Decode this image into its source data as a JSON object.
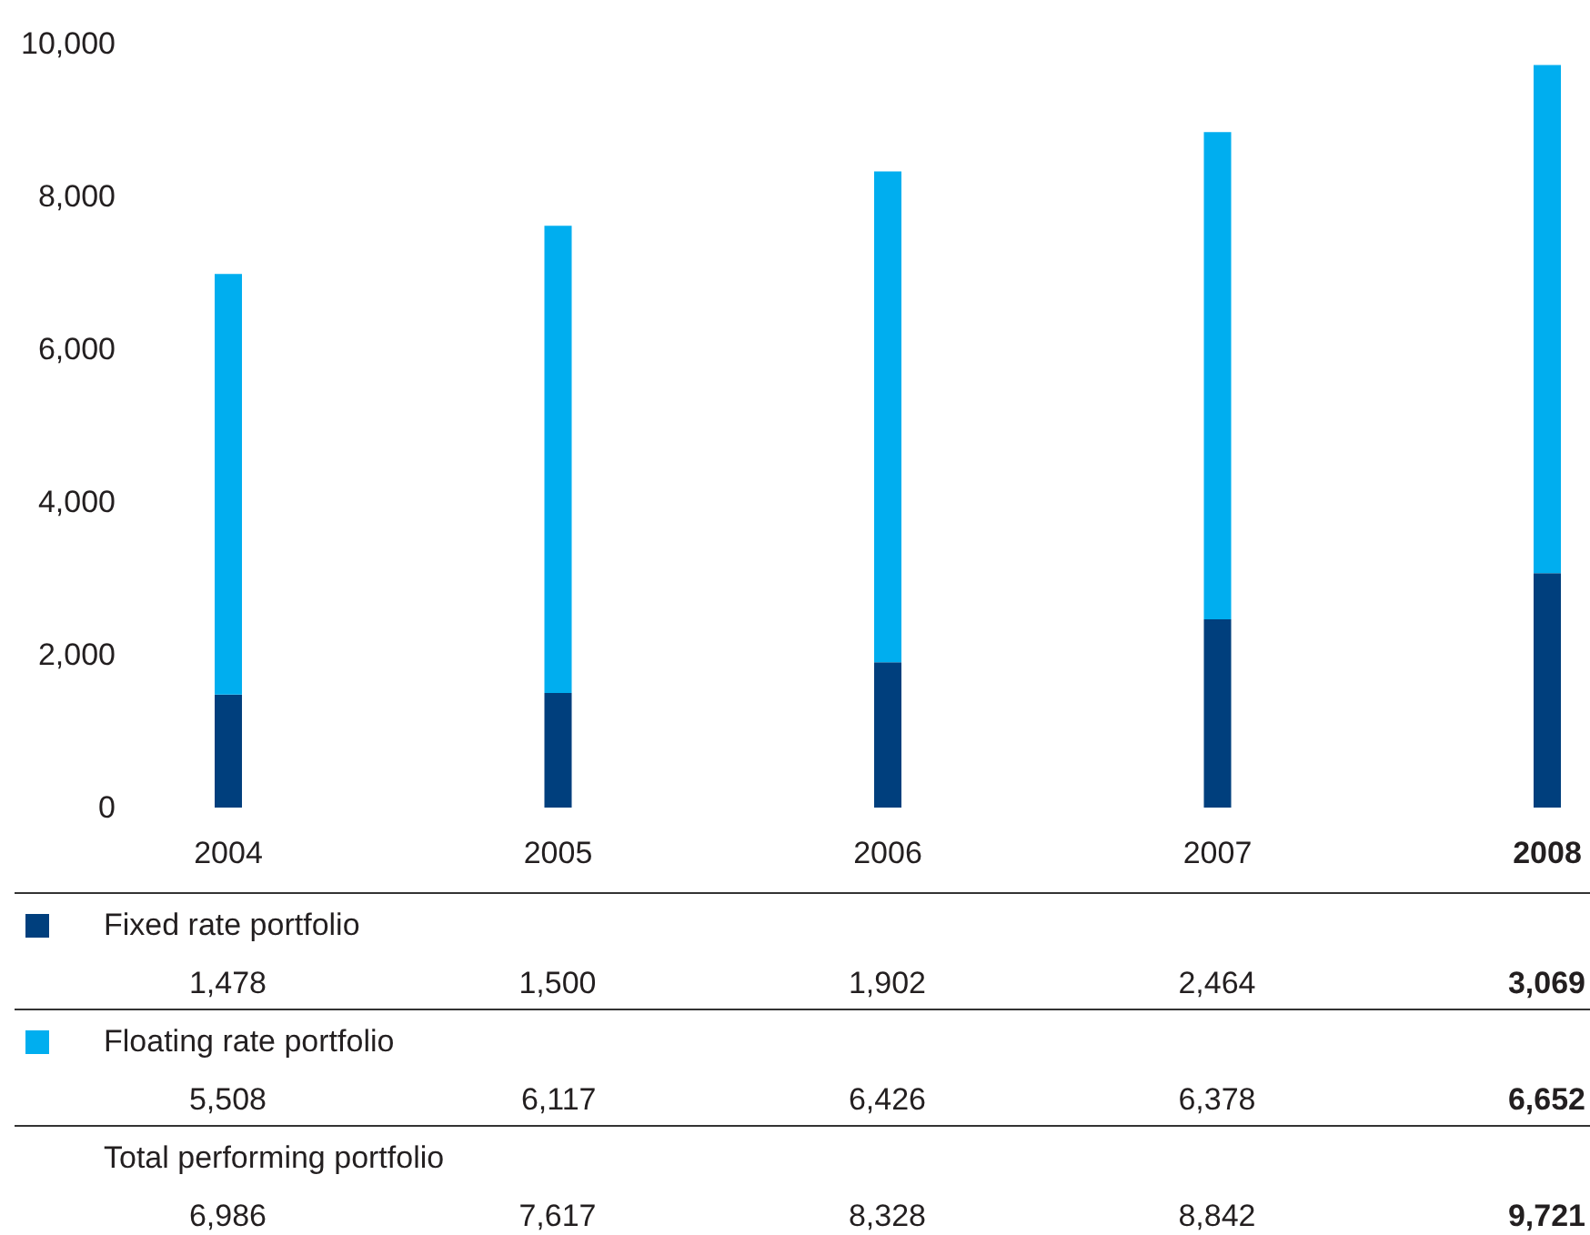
{
  "chart_data": {
    "type": "bar",
    "stacked": true,
    "categories": [
      "2004",
      "2005",
      "2006",
      "2007",
      "2008"
    ],
    "series": [
      {
        "name": "Fixed rate portfolio",
        "color": "#003f7d",
        "values": [
          1478,
          1500,
          1902,
          2464,
          3069
        ],
        "value_labels": [
          "1,478",
          "1,500",
          "1,902",
          "2,464",
          "3,069"
        ]
      },
      {
        "name": "Floating rate portfolio",
        "color": "#00aeef",
        "values": [
          5508,
          6117,
          6426,
          6378,
          6652
        ],
        "value_labels": [
          "5,508",
          "6,117",
          "6,426",
          "6,378",
          "6,652"
        ]
      }
    ],
    "annotations": [
      "Total performing portfolio",
      "6,986",
      "7,617",
      "8,328",
      "8,842",
      "9,721"
    ],
    "ylim": [
      0,
      10000
    ],
    "yticks": [
      0,
      {
        "value": 2000,
        "label": "2,000"
      },
      {
        "value": 4000,
        "label": "4,000"
      },
      {
        "value": 6000,
        "label": "6,000"
      },
      {
        "value": 8000,
        "label": "8,000"
      },
      {
        "value": 10000,
        "label": "10,000"
      }
    ],
    "legend": "bottom"
  }
}
